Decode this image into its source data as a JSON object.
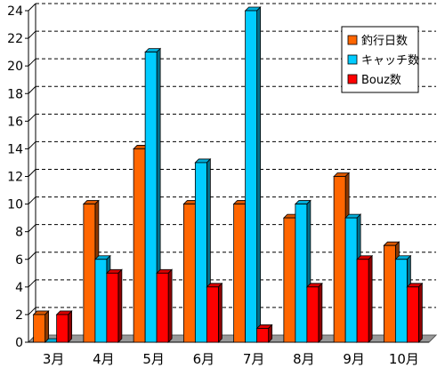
{
  "chart_data": {
    "type": "bar",
    "categories": [
      "3月",
      "4月",
      "5月",
      "6月",
      "7月",
      "8月",
      "9月",
      "10月"
    ],
    "series": [
      {
        "name": "釣行日数",
        "color": "#ff6600",
        "values": [
          2,
          10,
          14,
          10,
          10,
          9,
          12,
          7
        ]
      },
      {
        "name": "キャッチ数",
        "color": "#00ccff",
        "values": [
          0,
          6,
          21,
          13,
          24,
          10,
          9,
          6
        ]
      },
      {
        "name": "Bouz数",
        "color": "#ff0000",
        "values": [
          2,
          5,
          5,
          4,
          1,
          4,
          6,
          4
        ]
      }
    ],
    "ylim": [
      0,
      24
    ],
    "yticks": [
      "0",
      "2",
      "4",
      "6",
      "8",
      "10",
      "12",
      "14",
      "16",
      "18",
      "20",
      "22",
      "24"
    ],
    "grid": true,
    "legend_position": "top-right",
    "floor_color": "#999999",
    "wall_border_color": "#000000",
    "grid_color": "#000000"
  }
}
